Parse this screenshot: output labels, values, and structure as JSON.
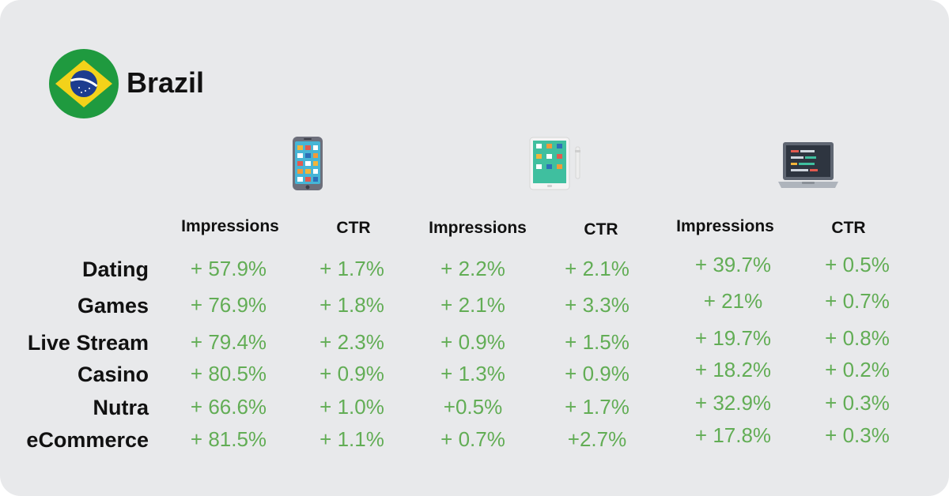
{
  "country": {
    "name": "Brazil",
    "flag_icon": "brazil-flag-icon"
  },
  "devices": [
    {
      "name": "phone",
      "icon": "smartphone-icon"
    },
    {
      "name": "tablet",
      "icon": "tablet-icon"
    },
    {
      "name": "desktop",
      "icon": "laptop-icon"
    }
  ],
  "headers": [
    "Impressions",
    "CTR",
    "Impressions",
    "CTR",
    "Impressions",
    "CTR"
  ],
  "categories": [
    "Dating",
    "Games",
    "Live Stream",
    "Casino",
    "Nutra",
    "eCommerce"
  ],
  "rows": [
    [
      "+ 57.9%",
      "+ 1.7%",
      "+ 2.2%",
      "+ 2.1%",
      "+ 39.7%",
      "+ 0.5%"
    ],
    [
      "+ 76.9%",
      "+ 1.8%",
      "+ 2.1%",
      "+ 3.3%",
      "+ 21%",
      "+ 0.7%"
    ],
    [
      "+ 79.4%",
      "+ 2.3%",
      "+ 0.9%",
      "+ 1.5%",
      "+ 19.7%",
      "+ 0.8%"
    ],
    [
      "+ 80.5%",
      "+ 0.9%",
      "+ 1.3%",
      "+ 0.9%",
      "+ 18.2%",
      "+ 0.2%"
    ],
    [
      "+ 66.6%",
      "+ 1.0%",
      "+0.5%",
      "+ 1.7%",
      "+ 32.9%",
      "+ 0.3%"
    ],
    [
      "+ 81.5%",
      "+ 1.1%",
      "+ 0.7%",
      "+2.7%",
      "+ 17.8%",
      "+ 0.3%"
    ]
  ],
  "colors": {
    "background": "#e8e9eb",
    "value_green": "#62ad55",
    "text": "#111111"
  }
}
